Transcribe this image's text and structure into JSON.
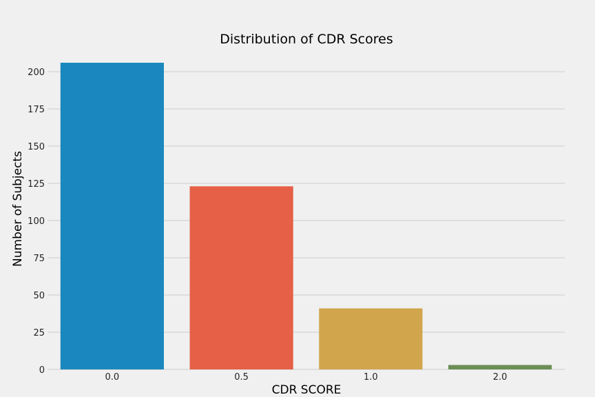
{
  "chart_data": {
    "type": "bar",
    "title": "Distribution of CDR Scores",
    "xlabel": "CDR SCORE",
    "ylabel": "Number of Subjects",
    "categories": [
      "0.0",
      "0.5",
      "1.0",
      "2.0"
    ],
    "values": [
      206,
      123,
      41,
      3
    ],
    "colors": [
      "#1a88be",
      "#e56047",
      "#d0a54c",
      "#6b8e55"
    ],
    "ylim": [
      0,
      206
    ],
    "yticks": [
      0,
      25,
      50,
      75,
      100,
      125,
      150,
      175,
      200
    ],
    "grid": "y",
    "legend": "none"
  },
  "colors": {
    "background": "#f0f0f0",
    "grid": "#cbcbcb"
  }
}
